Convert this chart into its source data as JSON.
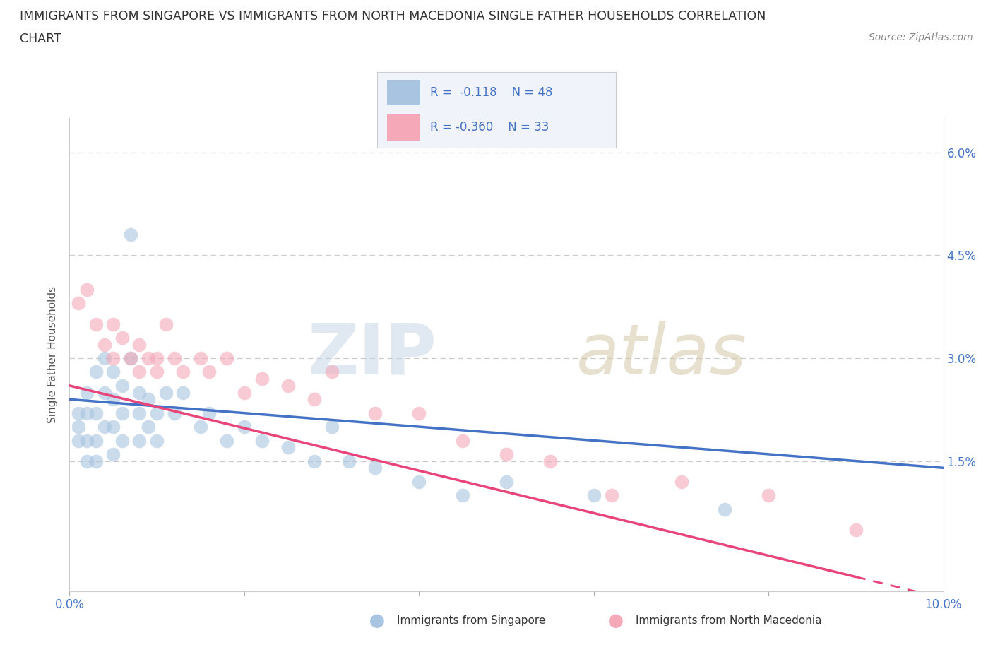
{
  "title_line1": "IMMIGRANTS FROM SINGAPORE VS IMMIGRANTS FROM NORTH MACEDONIA SINGLE FATHER HOUSEHOLDS CORRELATION",
  "title_line2": "CHART",
  "source": "Source: ZipAtlas.com",
  "ylabel": "Single Father Households",
  "xlim": [
    0.0,
    0.1
  ],
  "ylim": [
    -0.004,
    0.065
  ],
  "R_singapore": -0.118,
  "N_singapore": 48,
  "R_macedonia": -0.36,
  "N_macedonia": 33,
  "color_singapore": "#a8c4e0",
  "color_macedonia": "#f4a8b8",
  "line_color_singapore": "#4472c4",
  "line_color_macedonia": "#e8457a",
  "scatter_singapore_x": [
    0.001,
    0.001,
    0.001,
    0.002,
    0.002,
    0.002,
    0.002,
    0.003,
    0.003,
    0.003,
    0.003,
    0.004,
    0.004,
    0.004,
    0.005,
    0.005,
    0.005,
    0.005,
    0.006,
    0.006,
    0.006,
    0.007,
    0.007,
    0.008,
    0.008,
    0.008,
    0.009,
    0.009,
    0.01,
    0.01,
    0.011,
    0.012,
    0.013,
    0.015,
    0.016,
    0.018,
    0.02,
    0.022,
    0.025,
    0.028,
    0.03,
    0.032,
    0.035,
    0.04,
    0.045,
    0.05,
    0.06,
    0.075
  ],
  "scatter_singapore_y": [
    0.022,
    0.02,
    0.018,
    0.025,
    0.022,
    0.018,
    0.015,
    0.028,
    0.022,
    0.018,
    0.015,
    0.03,
    0.025,
    0.02,
    0.028,
    0.024,
    0.02,
    0.016,
    0.026,
    0.022,
    0.018,
    0.048,
    0.03,
    0.025,
    0.022,
    0.018,
    0.024,
    0.02,
    0.022,
    0.018,
    0.025,
    0.022,
    0.025,
    0.02,
    0.022,
    0.018,
    0.02,
    0.018,
    0.017,
    0.015,
    0.02,
    0.015,
    0.014,
    0.012,
    0.01,
    0.012,
    0.01,
    0.008
  ],
  "scatter_macedonia_x": [
    0.001,
    0.002,
    0.003,
    0.004,
    0.005,
    0.005,
    0.006,
    0.007,
    0.008,
    0.008,
    0.009,
    0.01,
    0.01,
    0.011,
    0.012,
    0.013,
    0.015,
    0.016,
    0.018,
    0.02,
    0.022,
    0.025,
    0.028,
    0.03,
    0.035,
    0.04,
    0.045,
    0.05,
    0.055,
    0.062,
    0.07,
    0.08,
    0.09
  ],
  "scatter_macedonia_y": [
    0.038,
    0.04,
    0.035,
    0.032,
    0.035,
    0.03,
    0.033,
    0.03,
    0.032,
    0.028,
    0.03,
    0.028,
    0.03,
    0.035,
    0.03,
    0.028,
    0.03,
    0.028,
    0.03,
    0.025,
    0.027,
    0.026,
    0.024,
    0.028,
    0.022,
    0.022,
    0.018,
    0.016,
    0.015,
    0.01,
    0.012,
    0.01,
    0.005
  ],
  "trendline_sg_x0": 0.0,
  "trendline_sg_x1": 0.1,
  "trendline_sg_y0": 0.024,
  "trendline_sg_y1": 0.014,
  "trendline_mk_x0": 0.0,
  "trendline_mk_x1": 0.1,
  "trendline_mk_y0": 0.026,
  "trendline_mk_y1": -0.005,
  "trendline_mk_solid_end_x": 0.09
}
